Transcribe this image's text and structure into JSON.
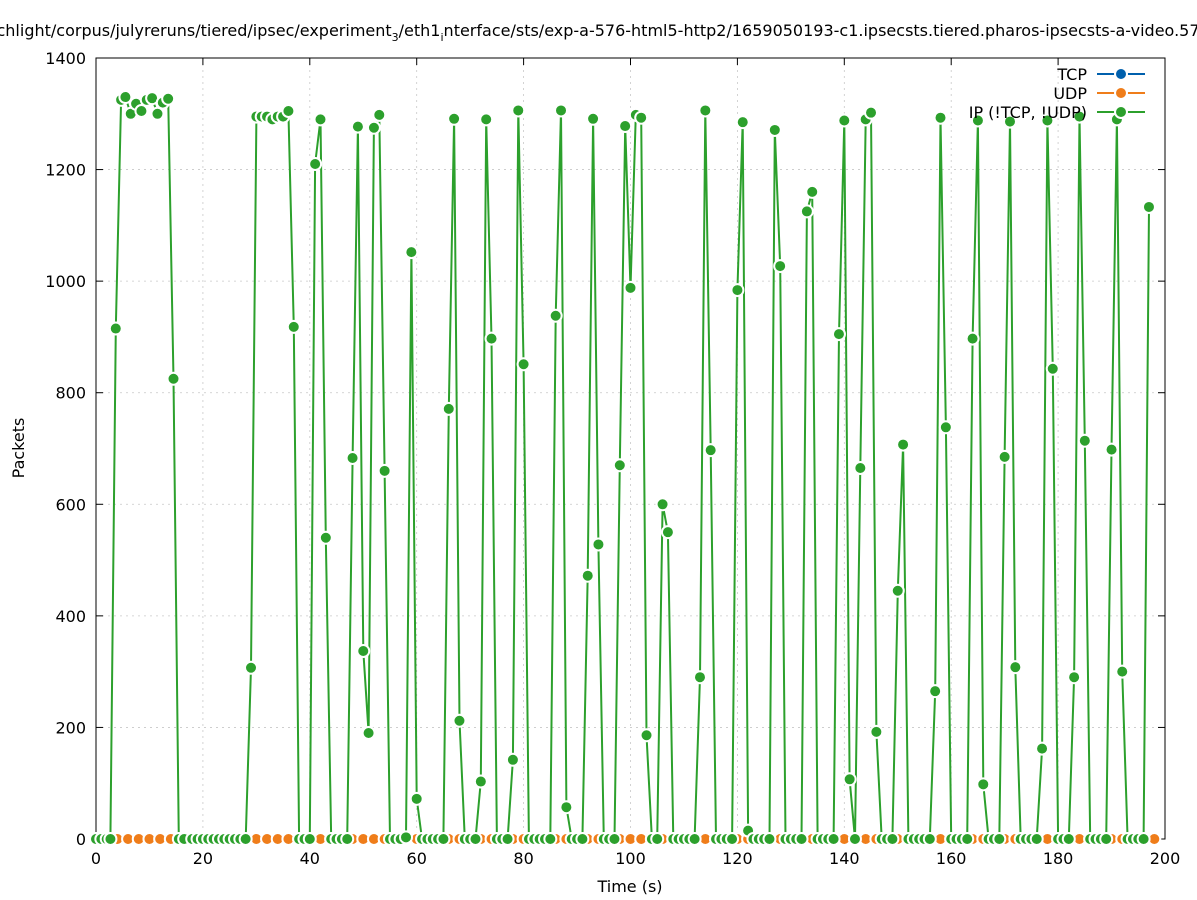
{
  "chart_data": {
    "type": "line",
    "title": "chlight/corpus/julyreruns/tiered/ipsec/experiment",
    "title_sub": "3",
    "title_mid": "/eth1",
    "title_sub2": "i",
    "title_end": "nterface/sts/exp-a-576-html5-http2/1659050193-c1.ipsecsts.tiered.pharos-ipsecsts-a-video.57",
    "xlabel": "Time (s)",
    "ylabel": "Packets",
    "xlim": [
      0,
      200
    ],
    "ylim": [
      0,
      1400
    ],
    "x_ticks": [
      0,
      20,
      40,
      60,
      80,
      100,
      120,
      140,
      160,
      180,
      200
    ],
    "y_ticks": [
      0,
      200,
      400,
      600,
      800,
      1000,
      1200,
      1400
    ],
    "grid": true,
    "legend_position": "top-right",
    "series": [
      {
        "name": "TCP",
        "color": "#0060ad",
        "x": [],
        "values": []
      },
      {
        "name": "UDP",
        "color": "#ef7d1a",
        "x": [
          0,
          2,
          4,
          6,
          8,
          10,
          12,
          14,
          16,
          18,
          20,
          22,
          24,
          26,
          28,
          30,
          32,
          34,
          36,
          38,
          40,
          42,
          44,
          46,
          48,
          50,
          52,
          54,
          56,
          58,
          60,
          62,
          64,
          66,
          68,
          70,
          72,
          74,
          76,
          78,
          80,
          82,
          84,
          86,
          88,
          90,
          92,
          94,
          96,
          98,
          100,
          102,
          104,
          106,
          108,
          110,
          112,
          114,
          116,
          118,
          120,
          122,
          124,
          126,
          128,
          130,
          132,
          134,
          136,
          138,
          140,
          142,
          144,
          146,
          148,
          150,
          152,
          154,
          156,
          158,
          160,
          162,
          164,
          166,
          168,
          170,
          172,
          174,
          176,
          178,
          180,
          182,
          184,
          186,
          188,
          190,
          192,
          194,
          196,
          198
        ],
        "values": [
          0,
          0,
          0,
          0,
          0,
          0,
          0,
          0,
          0,
          0,
          0,
          0,
          0,
          0,
          0,
          0,
          0,
          0,
          0,
          0,
          0,
          0,
          0,
          0,
          0,
          0,
          0,
          0,
          0,
          0,
          0,
          0,
          0,
          0,
          0,
          0,
          0,
          0,
          0,
          0,
          0,
          0,
          0,
          0,
          0,
          0,
          0,
          0,
          0,
          0,
          0,
          0,
          0,
          0,
          0,
          0,
          0,
          0,
          0,
          0,
          0,
          0,
          0,
          0,
          0,
          0,
          0,
          0,
          0,
          0,
          0,
          0,
          0,
          0,
          0,
          0,
          0,
          0,
          0,
          0,
          0,
          0,
          0,
          0,
          0,
          0,
          0,
          0,
          0,
          0,
          0,
          0,
          0,
          0,
          0,
          0,
          0,
          0,
          0,
          0
        ]
      },
      {
        "name": "IP (!TCP, !UDP)",
        "color": "#2ca02c",
        "x": [
          0,
          1,
          2,
          2.7,
          3.7,
          4.7,
          5.5,
          6.5,
          7.5,
          8.5,
          9.5,
          10.5,
          11.5,
          12.5,
          13.5,
          14.5,
          15.5,
          16.5,
          18,
          19,
          20,
          21,
          22,
          23,
          24,
          25,
          26,
          27,
          28,
          29,
          30,
          31,
          32,
          33,
          34,
          35,
          36,
          37,
          38,
          39,
          40,
          41,
          42,
          43,
          44,
          45,
          46,
          47,
          48,
          49,
          50,
          51,
          52,
          53,
          54,
          55,
          56,
          57,
          58,
          59,
          60,
          61,
          62,
          63,
          64,
          65,
          66,
          67,
          68,
          69,
          70,
          71,
          72,
          73,
          74,
          75,
          76,
          77,
          78,
          79,
          80,
          81,
          82,
          83,
          84,
          85,
          86,
          87,
          88,
          89,
          90,
          91,
          92,
          93,
          94,
          95,
          96,
          97,
          98,
          99,
          100,
          101,
          102,
          103,
          104,
          105,
          106,
          107,
          108,
          109,
          110,
          111,
          112,
          113,
          114,
          115,
          116,
          117,
          118,
          119,
          120,
          121,
          122,
          123,
          124,
          125,
          126,
          127,
          128,
          129,
          130,
          131,
          132,
          133,
          134,
          135,
          136,
          137,
          138,
          139,
          140,
          141,
          142,
          143,
          144,
          145,
          146,
          147,
          148,
          149,
          150,
          151,
          152,
          153,
          154,
          155,
          156,
          157,
          158,
          159,
          160,
          161,
          162,
          163,
          164,
          165,
          166,
          167,
          168,
          169,
          170,
          171,
          172,
          173,
          174,
          175,
          176,
          177,
          178,
          179,
          180,
          181,
          182,
          183,
          184,
          185,
          186,
          187,
          188,
          189,
          190,
          191,
          192,
          193,
          194,
          195,
          196,
          197
        ],
        "values": [
          0,
          0,
          0,
          0,
          915,
          1325,
          1330,
          1300,
          1318,
          1305,
          1325,
          1328,
          1300,
          1320,
          1327,
          825,
          0,
          0,
          0,
          0,
          0,
          0,
          0,
          0,
          0,
          0,
          0,
          0,
          0,
          307,
          1295,
          1295,
          1295,
          1290,
          1295,
          1295,
          1305,
          918,
          0,
          0,
          0,
          1210,
          1290,
          540,
          0,
          0,
          0,
          0,
          683,
          1277,
          337,
          190,
          1275,
          1298,
          660,
          0,
          0,
          0,
          3,
          1052,
          72,
          0,
          0,
          0,
          0,
          0,
          771,
          1291,
          212,
          0,
          0,
          0,
          103,
          1290,
          897,
          0,
          0,
          0,
          142,
          1306,
          851,
          0,
          0,
          0,
          0,
          0,
          938,
          1306,
          57,
          0,
          0,
          0,
          472,
          1291,
          528,
          0,
          0,
          0,
          670,
          1278,
          988,
          1298,
          1293,
          186,
          0,
          0,
          600,
          550,
          0,
          0,
          0,
          0,
          0,
          290,
          1306,
          697,
          0,
          0,
          0,
          0,
          984,
          1285,
          15,
          0,
          0,
          0,
          0,
          1271,
          1027,
          0,
          0,
          0,
          0,
          1125,
          1160,
          0,
          0,
          0,
          0,
          905,
          1288,
          107,
          0,
          665,
          1290,
          1302,
          192,
          0,
          0,
          0,
          445,
          707,
          0,
          0,
          0,
          0,
          0,
          265,
          1293,
          738,
          0,
          0,
          0,
          0,
          897,
          1288,
          98,
          0,
          0,
          0,
          685,
          1286,
          308,
          0,
          0,
          0,
          0,
          162,
          1288,
          843,
          0,
          0,
          0,
          290,
          1295,
          714,
          0,
          0,
          0,
          0,
          698,
          1290,
          300,
          0,
          0,
          0,
          0,
          1133
        ]
      }
    ]
  }
}
